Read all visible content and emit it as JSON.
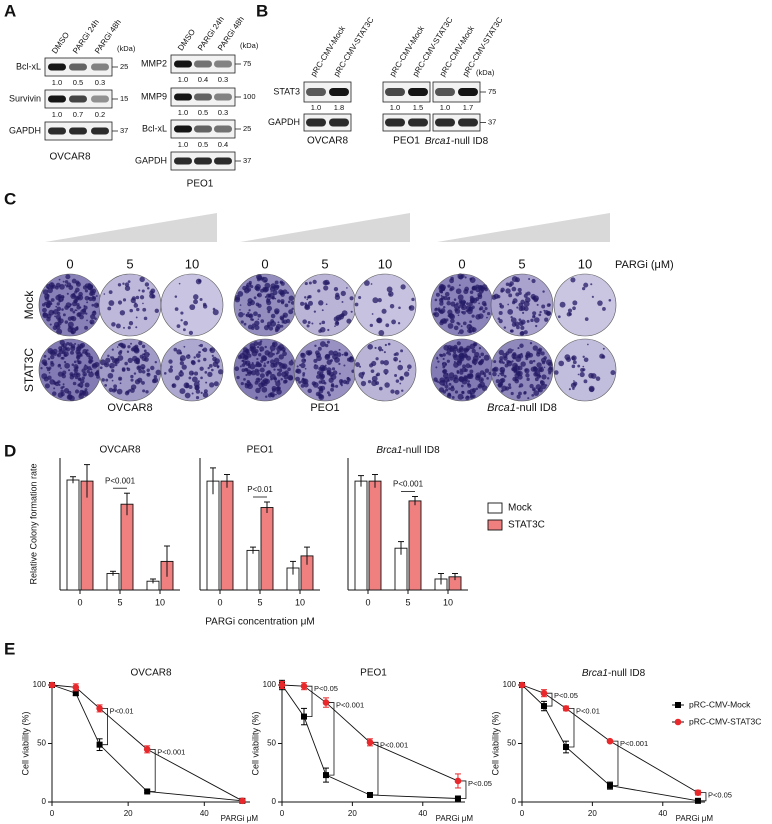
{
  "panel_labels": [
    "A",
    "B",
    "C",
    "D",
    "E"
  ],
  "blots_a": [
    {
      "lanes": [
        "DMSO",
        "PARGi 24h",
        "PARGi 48h"
      ],
      "unit": "(kDa)",
      "cell_line": "OVCAR8",
      "rows": [
        {
          "label": "Bcl-xL",
          "marker": "25",
          "ratios": [
            "1.0",
            "0.5",
            "0.3"
          ]
        },
        {
          "label": "Survivin",
          "marker": "15",
          "ratios": [
            "1.0",
            "0.7",
            "0.2"
          ]
        },
        {
          "label": "GAPDH",
          "marker": "37"
        }
      ]
    },
    {
      "lanes": [
        "DMSO",
        "PARGi 24h",
        "PARGi 48h"
      ],
      "unit": "(kDa)",
      "cell_line": "PEO1",
      "rows": [
        {
          "label": "MMP2",
          "marker": "75",
          "ratios": [
            "1.0",
            "0.4",
            "0.3"
          ]
        },
        {
          "label": "MMP9",
          "marker": "100",
          "ratios": [
            "1.0",
            "0.5",
            "0.3"
          ]
        },
        {
          "label": "Bcl-xL",
          "marker": "25",
          "ratios": [
            "1.0",
            "0.5",
            "0.4"
          ]
        },
        {
          "label": "GAPDH",
          "marker": "37"
        }
      ]
    }
  ],
  "blots_b": {
    "unit": "(kDa)",
    "rows": [
      {
        "label": "STAT3",
        "marker": "75"
      },
      {
        "label": "GAPDH",
        "marker": "37"
      }
    ],
    "groups": [
      {
        "lanes": [
          "pRC-CMV-Mock",
          "pRC-CMV-STAT3C"
        ],
        "ratios": [
          "1.0",
          "1.8"
        ],
        "cell_line": "OVCAR8"
      },
      {
        "lanes": [
          "pRC-CMV-Mock",
          "pRC-CMV-STAT3C"
        ],
        "ratios": [
          "1.0",
          "1.5"
        ],
        "cell_line": "PEO1"
      },
      {
        "lanes": [
          "pRC-CMV-Mock",
          "pRC-CMV-STAT3C"
        ],
        "ratios": [
          "1.0",
          "1.7"
        ],
        "cell_line": {
          "italic": "Brca1",
          "text": "-null ID8"
        }
      }
    ]
  },
  "colony": {
    "doses": [
      "0",
      "5",
      "10"
    ],
    "dose_unit": "PARGi (μM)",
    "conditions": [
      "Mock",
      "STAT3C"
    ],
    "cell_lines": [
      "OVCAR8",
      "PEO1",
      {
        "italic": "Brca1",
        "text": "-null ID8"
      }
    ]
  },
  "chart_data": [
    {
      "type": "bar",
      "title": "OVCAR8",
      "ylabel": "Relative Colony formation rate",
      "categories": [
        "0",
        "5",
        "10"
      ],
      "series": [
        {
          "color": "#ffffff",
          "values": [
            1.0,
            0.15,
            0.08
          ],
          "errors": [
            0.03,
            0.02,
            0.02
          ]
        },
        {
          "color": "#f08080",
          "values": [
            0.99,
            0.78,
            0.26
          ],
          "errors": [
            0.15,
            0.1,
            0.14
          ]
        }
      ],
      "annotations": [
        null,
        "P<0.001",
        null
      ],
      "ylim": [
        0,
        1.2
      ]
    },
    {
      "type": "bar",
      "title": "PEO1",
      "xlabel": "PARGi  concentration μM",
      "categories": [
        "0",
        "5",
        "10"
      ],
      "series": [
        {
          "color": "#ffffff",
          "values": [
            0.99,
            0.36,
            0.2
          ],
          "errors": [
            0.12,
            0.03,
            0.06
          ]
        },
        {
          "color": "#f08080",
          "values": [
            0.99,
            0.75,
            0.31
          ],
          "errors": [
            0.06,
            0.05,
            0.08
          ]
        }
      ],
      "annotations": [
        null,
        "P<0.01",
        null
      ],
      "ylim": [
        0,
        1.2
      ]
    },
    {
      "type": "bar",
      "title": {
        "italic": "Brca1",
        "text": "-null ID8"
      },
      "categories": [
        "0",
        "5",
        "10"
      ],
      "series": [
        {
          "name": "Mock",
          "color": "#ffffff",
          "values": [
            0.99,
            0.38,
            0.1
          ],
          "errors": [
            0.05,
            0.06,
            0.05
          ]
        },
        {
          "name": "STAT3C",
          "color": "#f08080",
          "values": [
            0.99,
            0.81,
            0.12
          ],
          "errors": [
            0.06,
            0.04,
            0.03
          ]
        }
      ],
      "annotations": [
        null,
        "P<0.001",
        null
      ],
      "ylim": [
        0,
        1.2
      ],
      "legend": "right"
    },
    {
      "type": "line",
      "title": "OVCAR8",
      "ylabel": "Cell viability (%)",
      "xlabel": "PARGi μM",
      "x": [
        0,
        6.25,
        12.5,
        25,
        50
      ],
      "xlim": [
        0,
        52
      ],
      "xticks": [
        0,
        20,
        40
      ],
      "ylim": [
        0,
        100
      ],
      "yticks": [
        0,
        50,
        100
      ],
      "series": [
        {
          "color": "#000000",
          "marker": "square",
          "values": [
            100,
            93,
            49,
            9,
            1
          ],
          "errors": [
            1,
            2,
            5,
            1,
            0.5
          ]
        },
        {
          "color": "#e8282b",
          "marker": "circle",
          "values": [
            100,
            98,
            80,
            45,
            1
          ],
          "errors": [
            1,
            3,
            3,
            3,
            0.5
          ]
        }
      ],
      "annotations": [
        null,
        null,
        "P<0.01",
        "P<0.001",
        null
      ]
    },
    {
      "type": "line",
      "title": "PEO1",
      "ylabel": "Cell viability (%)",
      "xlabel": "PARGi μM",
      "x": [
        0,
        6.25,
        12.5,
        25,
        50
      ],
      "xlim": [
        0,
        52
      ],
      "xticks": [
        0,
        20,
        40
      ],
      "ylim": [
        0,
        100
      ],
      "yticks": [
        0,
        50,
        100
      ],
      "series": [
        {
          "color": "#000000",
          "marker": "square",
          "values": [
            100,
            73,
            23,
            6,
            3
          ],
          "errors": [
            4,
            7,
            6,
            1,
            1
          ]
        },
        {
          "color": "#e8282b",
          "marker": "circle",
          "values": [
            100,
            99,
            85,
            51,
            18
          ],
          "errors": [
            3,
            3,
            4,
            3,
            6
          ]
        }
      ],
      "annotations": [
        null,
        "P<0.05",
        "P<0.001",
        "P<0.001",
        "P<0.05"
      ]
    },
    {
      "type": "line",
      "title": {
        "italic": "Brca1",
        "text": "-null ID8"
      },
      "ylabel": "Cell viability (%)",
      "xlabel": "PARGi μM",
      "x": [
        0,
        6.25,
        12.5,
        25,
        50
      ],
      "xlim": [
        0,
        52
      ],
      "xticks": [
        0,
        20,
        40
      ],
      "ylim": [
        0,
        100
      ],
      "yticks": [
        0,
        50,
        100
      ],
      "series": [
        {
          "name": "pRC-CMV-Mock",
          "color": "#000000",
          "marker": "square",
          "values": [
            100,
            82,
            47,
            14,
            1
          ],
          "errors": [
            2,
            4,
            5,
            3,
            1
          ]
        },
        {
          "name": "pRC-CMV-STAT3C",
          "color": "#e8282b",
          "marker": "circle",
          "values": [
            100,
            93,
            80,
            52,
            8
          ],
          "errors": [
            1,
            3,
            2,
            1,
            2
          ]
        }
      ],
      "annotations": [
        null,
        "P<0.05",
        "P<0.01",
        "P<0.001",
        "P<0.05"
      ],
      "legend": "right"
    }
  ]
}
